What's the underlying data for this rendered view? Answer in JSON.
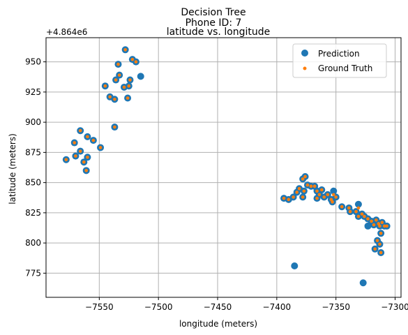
{
  "chart_data": {
    "type": "scatter",
    "suptitle": "Decision Tree",
    "suptitle2": "Phone ID: 7",
    "title": "latitude vs. longitude",
    "xlabel": "longitude (meters)",
    "ylabel": "latitude (meters)",
    "y_offset_label": "+4.864e6",
    "xlim": [
      -7595,
      -7295
    ],
    "ylim": [
      755,
      970
    ],
    "xticks": [
      -7550,
      -7500,
      -7450,
      -7400,
      -7350,
      -7300
    ],
    "yticks": [
      775,
      800,
      825,
      850,
      875,
      900,
      925,
      950
    ],
    "xtick_labels": [
      "−7550",
      "−7500",
      "−7450",
      "−7400",
      "−7350",
      "−7300"
    ],
    "ytick_labels": [
      "775",
      "800",
      "825",
      "850",
      "875",
      "900",
      "925",
      "950"
    ],
    "grid": true,
    "legend_position": "top-right",
    "colors": {
      "prediction": "#1f77b4",
      "ground_truth": "#ff7f0e"
    },
    "series": [
      {
        "name": "Prediction",
        "marker": "large-circle",
        "points": [
          [
            -7528,
            960
          ],
          [
            -7522,
            952
          ],
          [
            -7519,
            950
          ],
          [
            -7534,
            948
          ],
          [
            -7515,
            938
          ],
          [
            -7533,
            939
          ],
          [
            -7524,
            935
          ],
          [
            -7536,
            935
          ],
          [
            -7545,
            930
          ],
          [
            -7529,
            929
          ],
          [
            -7525,
            930
          ],
          [
            -7541,
            921
          ],
          [
            -7537,
            919
          ],
          [
            -7526,
            920
          ],
          [
            -7537,
            896
          ],
          [
            -7566,
            893
          ],
          [
            -7560,
            888
          ],
          [
            -7555,
            885
          ],
          [
            -7571,
            883
          ],
          [
            -7549,
            879
          ],
          [
            -7566,
            876
          ],
          [
            -7560,
            871
          ],
          [
            -7570,
            872
          ],
          [
            -7563,
            867
          ],
          [
            -7578,
            869
          ],
          [
            -7561,
            860
          ],
          [
            -7376,
            855
          ],
          [
            -7378,
            853
          ],
          [
            -7374,
            848
          ],
          [
            -7371,
            847
          ],
          [
            -7368,
            847
          ],
          [
            -7377,
            843
          ],
          [
            -7381,
            845
          ],
          [
            -7383,
            842
          ],
          [
            -7366,
            843
          ],
          [
            -7364,
            840
          ],
          [
            -7362,
            844
          ],
          [
            -7360,
            838
          ],
          [
            -7357,
            840
          ],
          [
            -7352,
            843
          ],
          [
            -7354,
            836
          ],
          [
            -7350,
            838
          ],
          [
            -7353,
            834
          ],
          [
            -7366,
            837
          ],
          [
            -7378,
            838
          ],
          [
            -7386,
            838
          ],
          [
            -7390,
            836
          ],
          [
            -7394,
            837
          ],
          [
            -7345,
            830
          ],
          [
            -7339,
            829
          ],
          [
            -7338,
            826
          ],
          [
            -7331,
            832
          ],
          [
            -7333,
            826
          ],
          [
            -7331,
            822
          ],
          [
            -7328,
            824
          ],
          [
            -7326,
            822
          ],
          [
            -7323,
            820
          ],
          [
            -7323,
            814
          ],
          [
            -7320,
            818
          ],
          [
            -7316,
            819
          ],
          [
            -7318,
            815
          ],
          [
            -7314,
            816
          ],
          [
            -7313,
            814
          ],
          [
            -7311,
            817
          ],
          [
            -7309,
            814
          ],
          [
            -7307,
            814
          ],
          [
            -7312,
            808
          ],
          [
            -7315,
            802
          ],
          [
            -7313,
            799
          ],
          [
            -7317,
            795
          ],
          [
            -7312,
            792
          ],
          [
            -7385,
            781
          ],
          [
            -7327,
            767
          ]
        ]
      },
      {
        "name": "Ground Truth",
        "marker": "small-dot",
        "points": [
          [
            -7528,
            960
          ],
          [
            -7522,
            952
          ],
          [
            -7519,
            950
          ],
          [
            -7534,
            948
          ],
          [
            -7533,
            939
          ],
          [
            -7524,
            935
          ],
          [
            -7536,
            935
          ],
          [
            -7545,
            930
          ],
          [
            -7529,
            929
          ],
          [
            -7525,
            930
          ],
          [
            -7541,
            921
          ],
          [
            -7537,
            919
          ],
          [
            -7526,
            920
          ],
          [
            -7537,
            896
          ],
          [
            -7566,
            893
          ],
          [
            -7560,
            888
          ],
          [
            -7555,
            885
          ],
          [
            -7571,
            883
          ],
          [
            -7549,
            879
          ],
          [
            -7566,
            876
          ],
          [
            -7560,
            871
          ],
          [
            -7570,
            872
          ],
          [
            -7563,
            867
          ],
          [
            -7578,
            869
          ],
          [
            -7561,
            860
          ],
          [
            -7376,
            855
          ],
          [
            -7378,
            853
          ],
          [
            -7374,
            848
          ],
          [
            -7371,
            847
          ],
          [
            -7368,
            847
          ],
          [
            -7377,
            843
          ],
          [
            -7381,
            845
          ],
          [
            -7383,
            842
          ],
          [
            -7366,
            843
          ],
          [
            -7364,
            840
          ],
          [
            -7362,
            844
          ],
          [
            -7360,
            838
          ],
          [
            -7357,
            840
          ],
          [
            -7352,
            840
          ],
          [
            -7354,
            836
          ],
          [
            -7350,
            838
          ],
          [
            -7353,
            834
          ],
          [
            -7366,
            837
          ],
          [
            -7378,
            838
          ],
          [
            -7386,
            838
          ],
          [
            -7390,
            836
          ],
          [
            -7394,
            837
          ],
          [
            -7345,
            830
          ],
          [
            -7339,
            829
          ],
          [
            -7338,
            826
          ],
          [
            -7331,
            829
          ],
          [
            -7333,
            826
          ],
          [
            -7331,
            822
          ],
          [
            -7328,
            824
          ],
          [
            -7326,
            822
          ],
          [
            -7323,
            820
          ],
          [
            -7320,
            818
          ],
          [
            -7316,
            819
          ],
          [
            -7318,
            815
          ],
          [
            -7314,
            816
          ],
          [
            -7313,
            814
          ],
          [
            -7311,
            817
          ],
          [
            -7309,
            814
          ],
          [
            -7307,
            814
          ],
          [
            -7312,
            808
          ],
          [
            -7315,
            802
          ],
          [
            -7313,
            799
          ],
          [
            -7317,
            795
          ],
          [
            -7312,
            792
          ]
        ]
      }
    ]
  }
}
